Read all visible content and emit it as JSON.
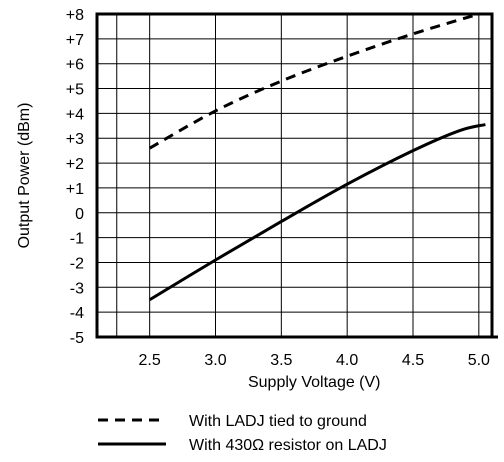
{
  "chart_data": {
    "type": "line",
    "title": "",
    "xlabel": "Supply Voltage (V)",
    "ylabel": "Output Power (dBm)",
    "xlim": [
      2.1,
      5.1
    ],
    "ylim": [
      -5,
      8
    ],
    "x_ticks": [
      "2.5",
      "3.0",
      "3.5",
      "4.0",
      "4.5",
      "5.0"
    ],
    "y_ticks": [
      "+8",
      "+7",
      "+6",
      "+5",
      "+4",
      "+3",
      "+2",
      "+1",
      "0",
      "-1",
      "-2",
      "-3",
      "-4",
      "-5"
    ],
    "grid": true,
    "legend_position": "bottom",
    "series": [
      {
        "name": "With LADJ tied to ground",
        "style": "dashed",
        "color": "#000000",
        "points": [
          [
            2.5,
            2.6
          ],
          [
            3.0,
            4.1
          ],
          [
            3.5,
            5.3
          ],
          [
            4.0,
            6.3
          ],
          [
            4.5,
            7.2
          ],
          [
            5.0,
            8.0
          ]
        ]
      },
      {
        "name": "With 430Ω  resistor on LADJ",
        "style": "solid",
        "color": "#000000",
        "points": [
          [
            2.5,
            -3.5
          ],
          [
            3.0,
            -1.9
          ],
          [
            3.5,
            -0.35
          ],
          [
            4.0,
            1.15
          ],
          [
            4.5,
            2.5
          ],
          [
            4.85,
            3.3
          ],
          [
            5.05,
            3.55
          ]
        ]
      }
    ]
  }
}
